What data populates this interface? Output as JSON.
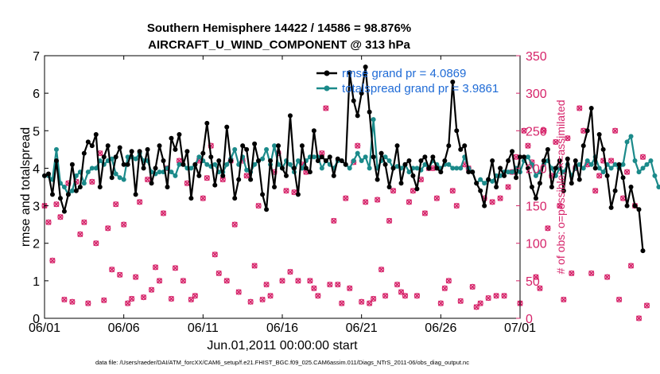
{
  "chart_data": {
    "type": "line",
    "title": "Southern Hemisphere 14422 / 14586 = 98.876%",
    "subtitle": "AIRCRAFT_U_WIND_COMPONENT @ 313 hPa",
    "xlabel": "Jun.01,2011 00:00:00 start",
    "ylabel": "rmse and totalspread",
    "ylabel_right": "# of obs: o=possible; ×=assimilated",
    "footer": "data file: /Users/raeder/DAI/ATM_forcXX/CAM6_setup/f.e21.FHIST_BGC.f09_025.CAM6assim.011/Diags_NTrS_2011-06/obs_diag_output.nc",
    "xlim": [
      0,
      30
    ],
    "ylim": [
      0,
      7
    ],
    "ylim_right": [
      0,
      350
    ],
    "x_ticks": [
      0,
      5,
      10,
      15,
      20,
      25,
      30
    ],
    "x_tick_labels": [
      "06/01",
      "06/06",
      "06/11",
      "06/16",
      "06/21",
      "06/26",
      "07/01"
    ],
    "y_ticks": [
      0,
      1,
      2,
      3,
      4,
      5,
      6,
      7
    ],
    "y_tick_labels": [
      "0",
      "1",
      "2",
      "3",
      "4",
      "5",
      "6",
      "7"
    ],
    "y_right_ticks": [
      0,
      50,
      100,
      150,
      200,
      250,
      300,
      350
    ],
    "y_right_tick_labels": [
      "0",
      "50",
      "100",
      "150",
      "200",
      "250",
      "300",
      "350"
    ],
    "x_step": 0.25,
    "legend_position": "top-right",
    "colors": {
      "rmse": "#000000",
      "spread": "#1b8a8a",
      "obs": "#d6246a",
      "legend_text": "#1f6bd6"
    },
    "series": [
      {
        "name": "rmse grand pr = 4.0869",
        "values": [
          3.8,
          3.85,
          3.3,
          4.2,
          3.2,
          2.85,
          3.3,
          4.1,
          3.4,
          3.5,
          4.4,
          4.7,
          4.6,
          4.9,
          3.5,
          4.3,
          4.6,
          3.75,
          4.3,
          4.55,
          4.1,
          4.1,
          4.45,
          3.3,
          4.45,
          4.0,
          4.5,
          3.6,
          4.0,
          4.6,
          4.2,
          3.5,
          4.8,
          4.5,
          4.9,
          4.1,
          4.45,
          3.2,
          4.1,
          3.8,
          4.4,
          5.2,
          4.3,
          3.55,
          4.2,
          3.8,
          5.1,
          4.2,
          3.2,
          3.7,
          4.6,
          4.5,
          3.7,
          4.65,
          4.2,
          3.3,
          2.9,
          4.2,
          3.5,
          4.6,
          4.0,
          3.8,
          5.4,
          4.0,
          3.3,
          4.6,
          4.0,
          3.9,
          5.0,
          4.2,
          4.3,
          4.2,
          4.3,
          3.8,
          4.25,
          4.2,
          4.1,
          6.55,
          5.8,
          5.4,
          6.0,
          6.7,
          5.5,
          4.3,
          3.7,
          4.4,
          4.1,
          3.5,
          4.0,
          4.6,
          3.6,
          4.1,
          4.2,
          3.8,
          3.45,
          4.2,
          4.3,
          4.0,
          4.3,
          4.0,
          3.9,
          4.2,
          4.6,
          6.3,
          5.0,
          4.5,
          4.6,
          3.9,
          3.9,
          3.6,
          3.4,
          3.0,
          3.7,
          4.2,
          3.5,
          4.0,
          3.8,
          4.2,
          4.45,
          3.75,
          4.3,
          4.3,
          4.0,
          3.5,
          3.2,
          3.6,
          4.2,
          4.5,
          3.5,
          4.0,
          4.2,
          3.4,
          4.25,
          3.6,
          4.2,
          3.7,
          4.6,
          5.0,
          5.6,
          4.0,
          4.9,
          4.5,
          3.8,
          2.95,
          3.4,
          4.1,
          3.75,
          3.0,
          3.5,
          3.0,
          2.9,
          1.8
        ]
      },
      {
        "name": "totalspread grand pr = 3.9861",
        "values": [
          3.8,
          3.8,
          3.7,
          4.5,
          3.6,
          3.5,
          3.3,
          3.4,
          3.8,
          3.9,
          3.6,
          3.9,
          4.0,
          4.0,
          4.2,
          4.1,
          4.2,
          4.25,
          3.85,
          3.75,
          3.7,
          4.3,
          4.3,
          4.25,
          4.4,
          4.2,
          4.2,
          3.9,
          3.85,
          3.9,
          3.9,
          4.0,
          3.9,
          3.8,
          4.1,
          4.1,
          4.0,
          4.0,
          4.1,
          4.3,
          4.2,
          4.1,
          4.05,
          4.1,
          3.9,
          3.9,
          4.1,
          4.25,
          4.5,
          4.1,
          4.3,
          3.95,
          3.9,
          4.1,
          4.2,
          4.25,
          4.5,
          4.1,
          4.6,
          4.1,
          4.0,
          4.2,
          4.1,
          3.9,
          4.2,
          4.0,
          4.2,
          4.3,
          4.3,
          4.3,
          4.0,
          4.2,
          4.1,
          4.0,
          4.2,
          4.2,
          4.1,
          4.0,
          4.2,
          4.4,
          4.2,
          4.3,
          4.0,
          5.3,
          4.0,
          4.2,
          4.3,
          4.2,
          4.0,
          4.05,
          4.0,
          4.1,
          3.9,
          4.0,
          4.0,
          3.95,
          4.1,
          4.0,
          4.2,
          4.1,
          4.0,
          4.1,
          4.1,
          4.0,
          4.0,
          4.0,
          4.3,
          4.0,
          3.9,
          3.6,
          3.7,
          3.6,
          3.7,
          3.65,
          3.8,
          3.8,
          3.9,
          3.9,
          3.9,
          4.0,
          3.9,
          4.2,
          4.3,
          4.1,
          3.8,
          3.9,
          4.1,
          4.2,
          4.0,
          3.8,
          4.0,
          3.9,
          4.1,
          3.8,
          4.0,
          4.1,
          4.0,
          4.2,
          4.1,
          4.3,
          4.0,
          3.9,
          4.1,
          4.0,
          4.1,
          4.0,
          4.1,
          4.7,
          4.85,
          4.2,
          3.9,
          4.0,
          4.1,
          4.2,
          3.8,
          3.5
        ]
      }
    ],
    "obs_possible": [
      150,
      128,
      77,
      152,
      135,
      25,
      180,
      22,
      182,
      112,
      128,
      20,
      182,
      100,
      220,
      24,
      120,
      65,
      152,
      58,
      125,
      20,
      26,
      55,
      155,
      28,
      185,
      38,
      68,
      50,
      140,
      200,
      26,
      67,
      210,
      50,
      180,
      25,
      30,
      210,
      160,
      187,
      230,
      85,
      60,
      185,
      50,
      210,
      125,
      35,
      210,
      190,
      22,
      70,
      150,
      25,
      45,
      30,
      195,
      220,
      50,
      170,
      62,
      168,
      50,
      205,
      195,
      50,
      40,
      30,
      220,
      280,
      45,
      130,
      45,
      20,
      160,
      40,
      208,
      230,
      22,
      155,
      20,
      26,
      158,
      65,
      30,
      130,
      170,
      45,
      35,
      30,
      155,
      170,
      30,
      185,
      140,
      200,
      200,
      160,
      20,
      40,
      50,
      170,
      150,
      23,
      205,
      200,
      42,
      15,
      20,
      160,
      27,
      155,
      30,
      160,
      30,
      175,
      195,
      215,
      20,
      250,
      230,
      208,
      55,
      40,
      250,
      120,
      190,
      235,
      150,
      25,
      240,
      60,
      200,
      280,
      250,
      205,
      60,
      170,
      190,
      210,
      55,
      210,
      250,
      25,
      160,
      195,
      70,
      150,
      0,
      215,
      17
    ]
  }
}
